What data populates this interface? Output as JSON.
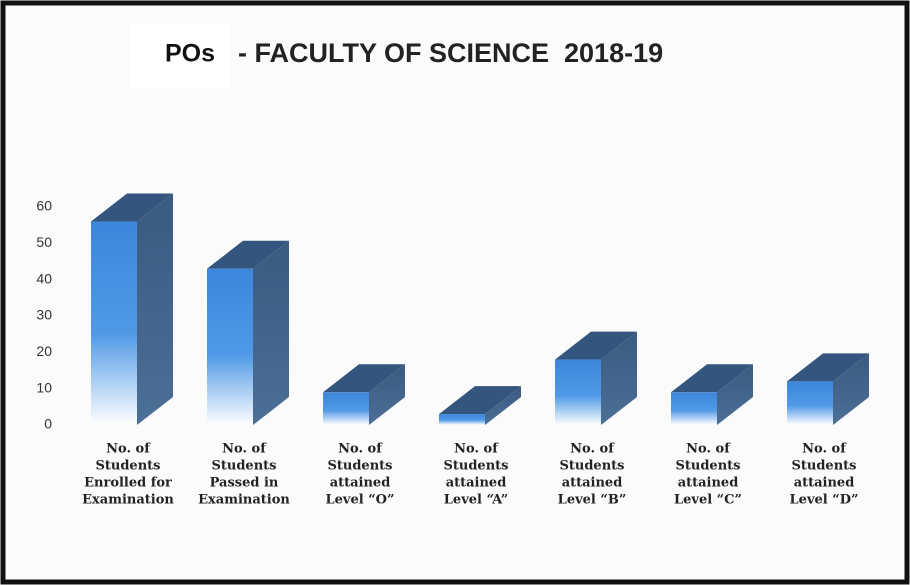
{
  "chart_data": {
    "type": "bar3d",
    "title": "POs",
    "subtitle": "- FACULTY OF SCIENCE  2018-19",
    "categories": [
      [
        "No. of",
        "Students",
        "Enrolled for",
        "Examination"
      ],
      [
        "No. of",
        "Students",
        "Passed in",
        "Examination"
      ],
      [
        "No. of",
        "Students",
        "attained",
        "Level “O”"
      ],
      [
        "No. of",
        "Students",
        "attained",
        "Level “A”"
      ],
      [
        "No. of",
        "Students",
        "attained",
        "Level “B”"
      ],
      [
        "No. of",
        "Students",
        "attained",
        "Level “C”"
      ],
      [
        "No. of",
        "Students",
        "attained",
        "Level “D”"
      ]
    ],
    "values": [
      56,
      43,
      9,
      3,
      18,
      9,
      12
    ],
    "color": "#3d86dc",
    "ylim": [
      0,
      60
    ],
    "yticks": [
      0,
      10,
      20,
      30,
      40,
      50,
      60
    ],
    "grid": false
  }
}
